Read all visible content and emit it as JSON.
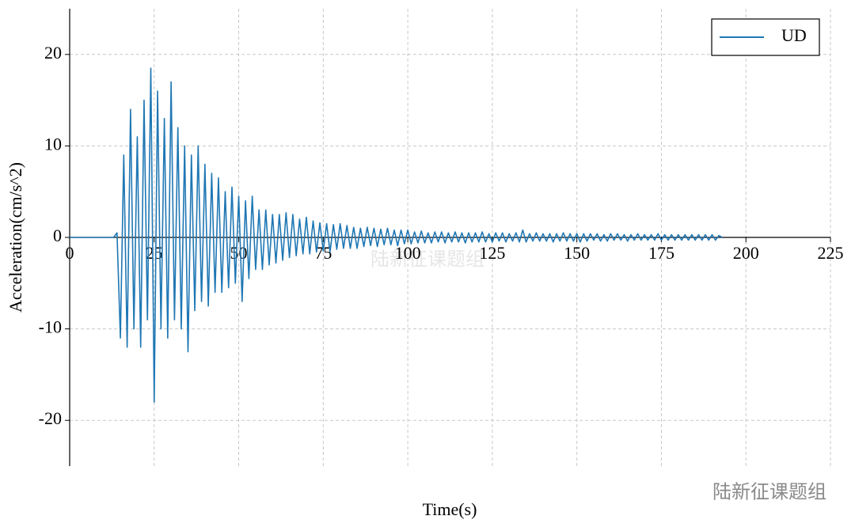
{
  "chart_data": {
    "type": "line",
    "xlabel": "Time(s)",
    "ylabel": "Acceleration(cm/s^2)",
    "watermark": "陆新征课题组",
    "xlim": [
      0,
      225
    ],
    "xticks": [
      0,
      25,
      50,
      75,
      100,
      125,
      150,
      175,
      200,
      225
    ],
    "ylim": [
      -25,
      25
    ],
    "yticks": [
      -20,
      -10,
      0,
      10,
      20
    ],
    "grid": true,
    "legend": "upper right",
    "x": [
      0,
      1,
      2,
      3,
      4,
      5,
      6,
      7,
      8,
      9,
      10,
      11,
      12,
      13,
      14,
      15,
      16,
      17,
      18,
      19,
      20,
      21,
      22,
      23,
      24,
      25,
      26,
      27,
      28,
      29,
      30,
      31,
      32,
      33,
      34,
      35,
      36,
      37,
      38,
      39,
      40,
      41,
      42,
      43,
      44,
      45,
      46,
      47,
      48,
      49,
      50,
      51,
      52,
      53,
      54,
      55,
      56,
      57,
      58,
      59,
      60,
      61,
      62,
      63,
      64,
      65,
      66,
      67,
      68,
      69,
      70,
      71,
      72,
      73,
      74,
      75,
      76,
      77,
      78,
      79,
      80,
      81,
      82,
      83,
      84,
      85,
      86,
      87,
      88,
      89,
      90,
      91,
      92,
      93,
      94,
      95,
      96,
      97,
      98,
      99,
      100,
      101,
      102,
      103,
      104,
      105,
      106,
      107,
      108,
      109,
      110,
      111,
      112,
      113,
      114,
      115,
      116,
      117,
      118,
      119,
      120,
      121,
      122,
      123,
      124,
      125,
      126,
      127,
      128,
      129,
      130,
      131,
      132,
      133,
      134,
      135,
      136,
      137,
      138,
      139,
      140,
      141,
      142,
      143,
      144,
      145,
      146,
      147,
      148,
      149,
      150,
      151,
      152,
      153,
      154,
      155,
      156,
      157,
      158,
      159,
      160,
      161,
      162,
      163,
      164,
      165,
      166,
      167,
      168,
      169,
      170,
      171,
      172,
      173,
      174,
      175,
      176,
      177,
      178,
      179,
      180,
      181,
      182,
      183,
      184,
      185,
      186,
      187,
      188,
      189,
      190,
      191,
      192,
      193
    ],
    "series": [
      {
        "name": "UD",
        "color": "#1f77b4",
        "values": [
          0,
          0,
          0,
          0,
          0,
          0,
          0,
          0,
          0,
          0,
          0,
          0,
          0,
          0,
          0.5,
          -11,
          9,
          -12,
          14,
          -10,
          11,
          -12,
          15,
          -9,
          18.5,
          -18,
          16,
          -10,
          13,
          -11,
          17,
          -9,
          12,
          -10,
          10,
          -12.5,
          9,
          -8,
          10,
          -7,
          8,
          -7.5,
          7,
          -6,
          6.5,
          -6,
          5,
          -5.5,
          5.5,
          -5,
          4.5,
          -7,
          4,
          -4.5,
          4.5,
          -3.5,
          3,
          -3.5,
          3,
          -3,
          2.5,
          -2.8,
          2.5,
          -2.5,
          2.7,
          -2.2,
          2.5,
          -2,
          2,
          -1.8,
          2.2,
          -1.8,
          1.8,
          -1.6,
          1.6,
          -1.5,
          1.5,
          -1.6,
          1.4,
          -1.3,
          1.5,
          -1.2,
          1.3,
          -1.2,
          1.1,
          -1.2,
          1,
          -1,
          1.1,
          -0.9,
          1,
          -1,
          0.9,
          -0.8,
          1,
          -0.8,
          0.8,
          -0.9,
          0.8,
          -0.7,
          0.8,
          -0.7,
          0.6,
          -0.6,
          0.7,
          -0.6,
          0.5,
          -0.6,
          0.6,
          -0.5,
          0.6,
          -0.6,
          0.5,
          -0.5,
          0.6,
          -0.5,
          0.5,
          -0.6,
          0.5,
          -0.5,
          0.5,
          -0.5,
          0.6,
          -0.5,
          0.4,
          -0.5,
          0.5,
          -0.4,
          0.5,
          -0.5,
          0.4,
          -0.4,
          0.5,
          -0.5,
          0.8,
          -0.5,
          0.4,
          -0.4,
          0.5,
          -0.4,
          0.4,
          -0.4,
          0.4,
          -0.5,
          0.4,
          -0.4,
          0.5,
          -0.4,
          0.4,
          -0.4,
          0.4,
          -0.5,
          0.4,
          -0.4,
          0.4,
          -0.3,
          0.4,
          -0.4,
          0.3,
          -0.4,
          0.4,
          -0.3,
          0.4,
          -0.3,
          0.3,
          -0.4,
          0.3,
          -0.3,
          0.4,
          -0.3,
          0.3,
          -0.3,
          0.3,
          -0.3,
          0.4,
          -0.3,
          0.3,
          -0.3,
          0.3,
          -0.3,
          0.3,
          -0.3,
          0.3,
          -0.3,
          0.3,
          -0.3,
          0.3,
          -0.3,
          0.3,
          -0.3,
          0.3,
          -0.3,
          0.2,
          0
        ]
      }
    ]
  }
}
